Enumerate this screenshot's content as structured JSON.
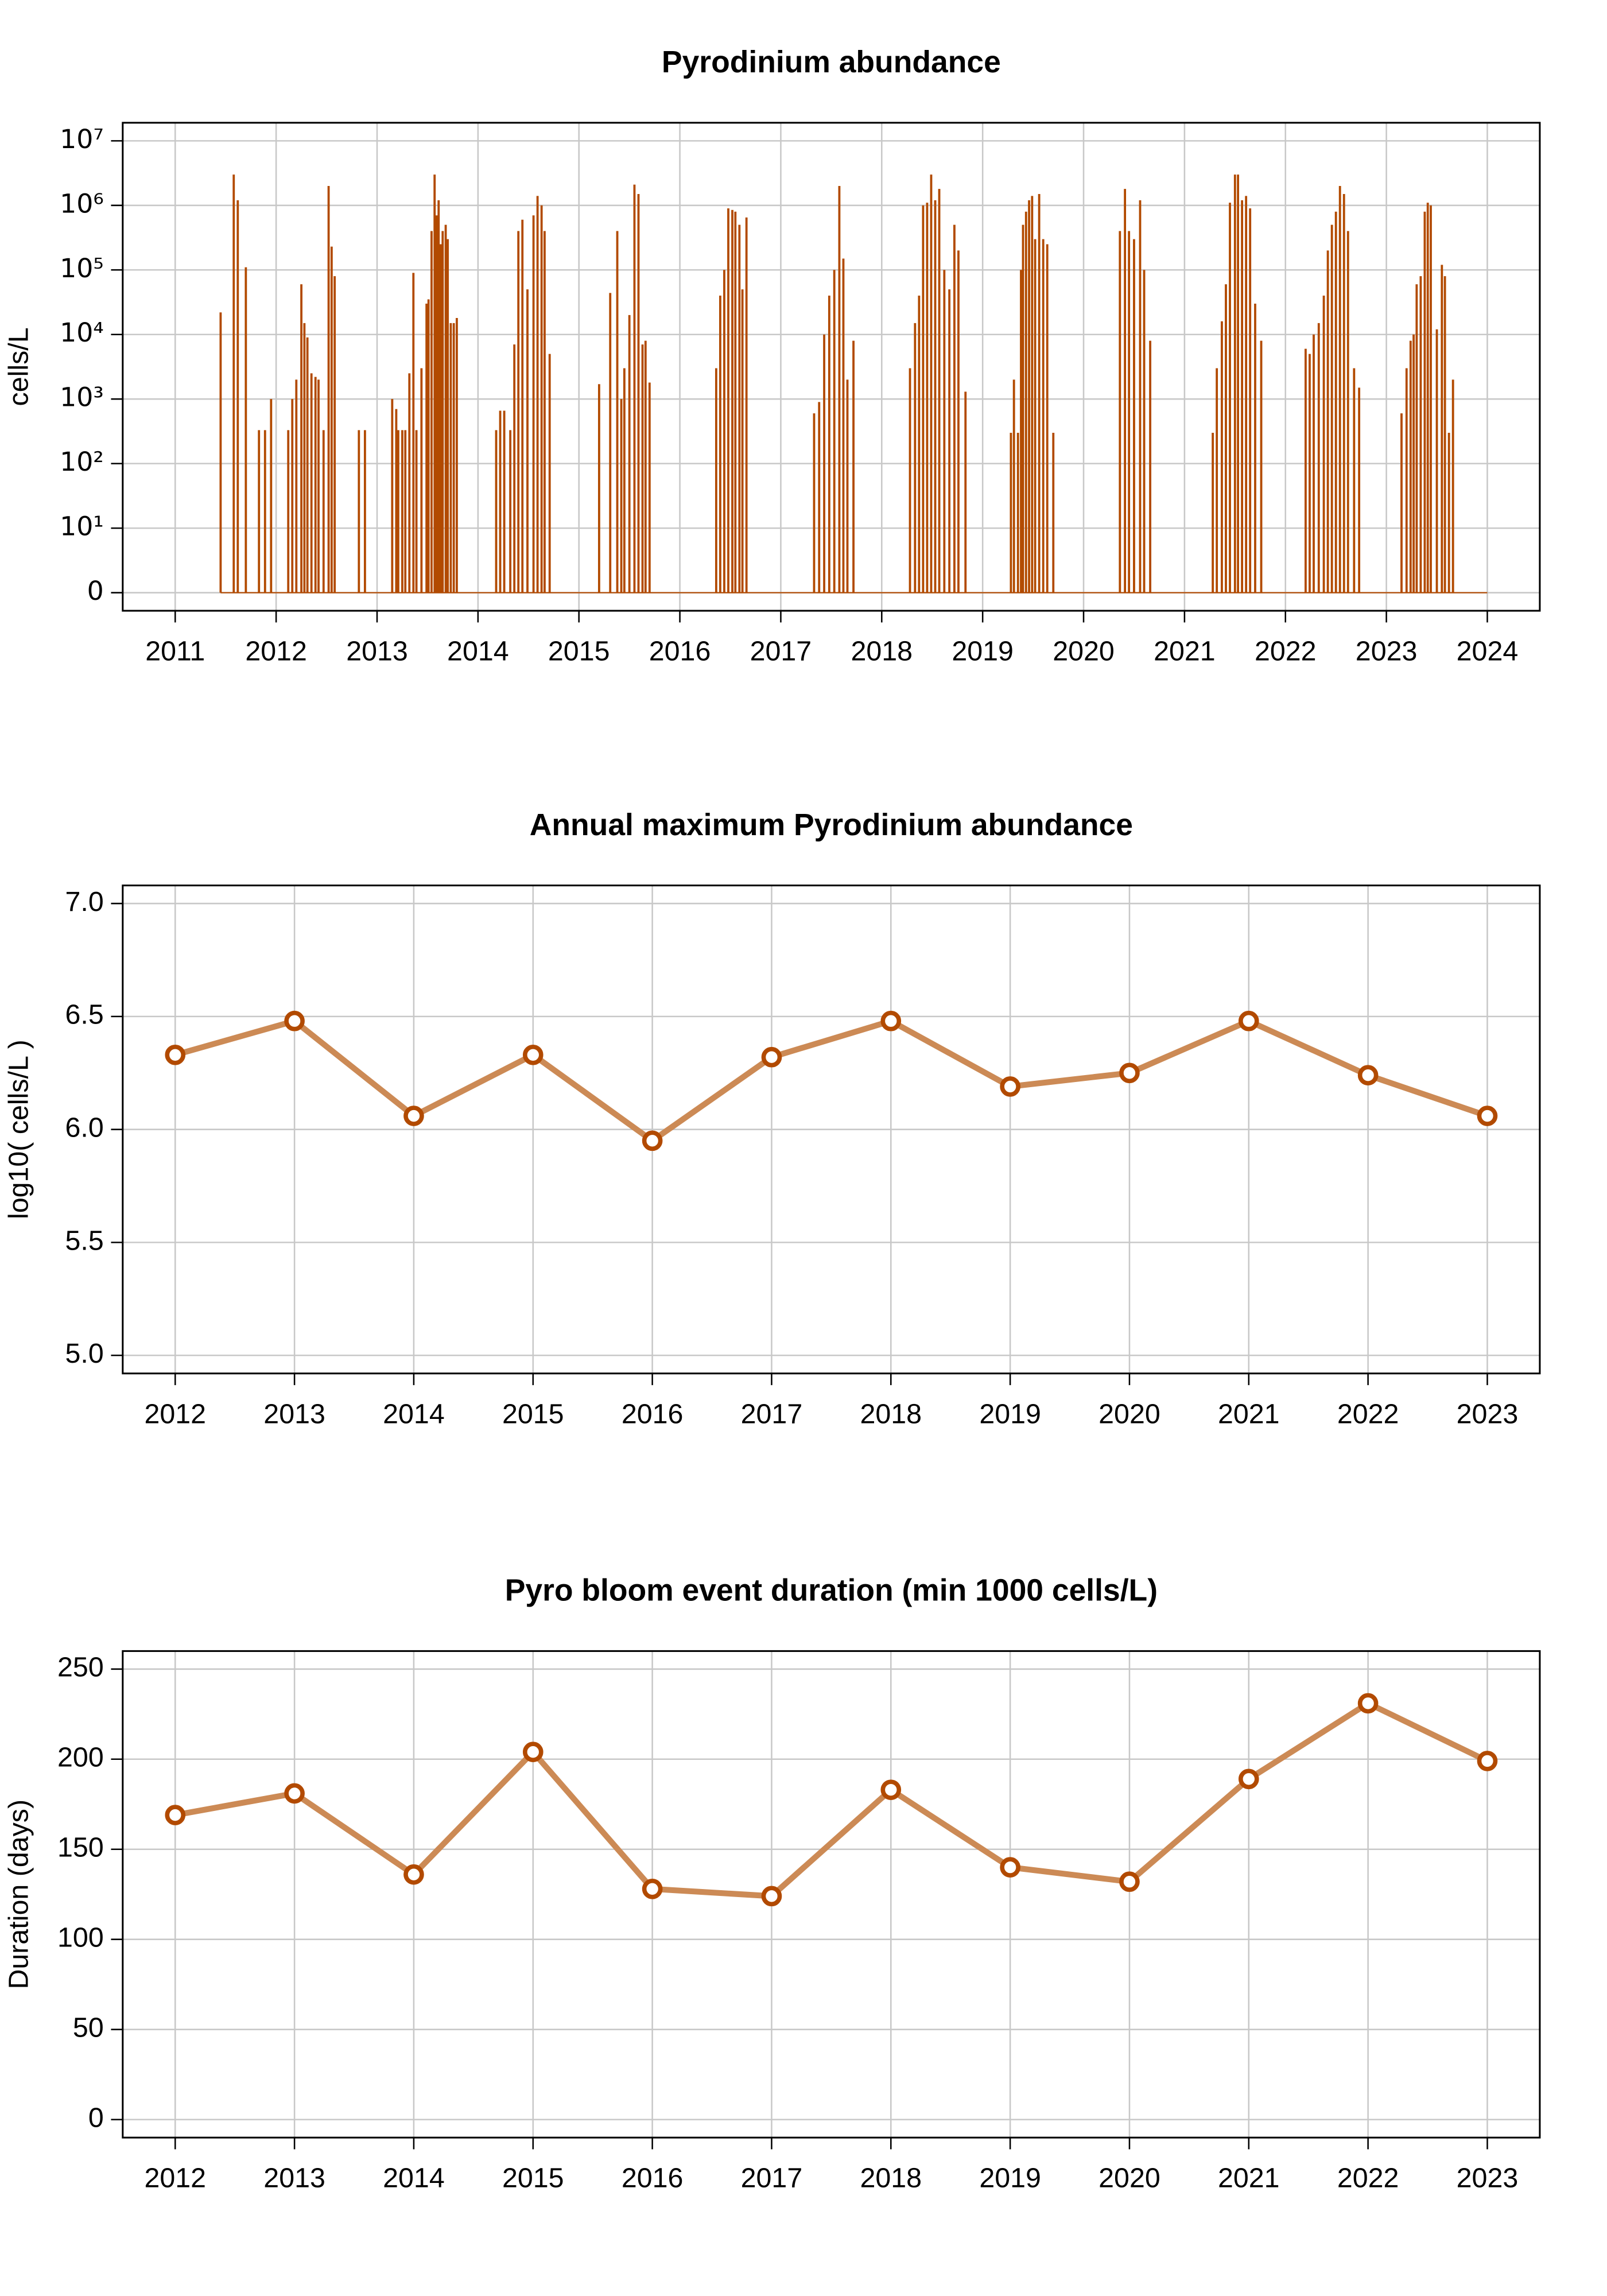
{
  "chart_data": [
    {
      "type": "spike",
      "title": "Pyrodinium abundance",
      "ylabel": "cells/L",
      "yscale": "log",
      "xlim": [
        2011,
        2024
      ],
      "xticks": [
        2011,
        2012,
        2013,
        2014,
        2015,
        2016,
        2017,
        2018,
        2019,
        2020,
        2021,
        2022,
        2023,
        2024
      ],
      "ylim": [
        0,
        10000000
      ],
      "yticks": [
        0,
        {
          "value": 10,
          "label": "10¹"
        },
        {
          "value": 100,
          "label": "10²"
        },
        {
          "value": 1000,
          "label": "10³"
        },
        {
          "value": 10000,
          "label": "10⁴"
        },
        {
          "value": 100000,
          "label": "10⁵"
        },
        {
          "value": 1000000,
          "label": "10⁶"
        },
        {
          "value": 10000000,
          "label": "10⁷"
        }
      ],
      "grid": true,
      "series": [
        {
          "color": "#b24a00",
          "x": [
            2011.45,
            2011.58,
            2011.62,
            2011.7,
            2011.83,
            2011.89,
            2011.95,
            2012.12,
            2012.16,
            2012.2,
            2012.25,
            2012.28,
            2012.31,
            2012.35,
            2012.39,
            2012.42,
            2012.47,
            2012.52,
            2012.55,
            2012.58,
            2012.82,
            2012.88,
            2013.15,
            2013.19,
            2013.21,
            2013.25,
            2013.28,
            2013.32,
            2013.36,
            2013.39,
            2013.44,
            2013.49,
            2013.51,
            2013.54,
            2013.57,
            2013.59,
            2013.61,
            2013.63,
            2013.65,
            2013.68,
            2013.7,
            2013.73,
            2013.76,
            2013.79,
            2014.18,
            2014.22,
            2014.26,
            2014.32,
            2014.36,
            2014.4,
            2014.44,
            2014.49,
            2014.55,
            2014.59,
            2014.63,
            2014.66,
            2014.71,
            2015.2,
            2015.31,
            2015.38,
            2015.42,
            2015.45,
            2015.5,
            2015.55,
            2015.59,
            2015.63,
            2015.66,
            2015.7,
            2016.36,
            2016.4,
            2016.44,
            2016.48,
            2016.52,
            2016.55,
            2016.59,
            2016.62,
            2016.66,
            2017.33,
            2017.38,
            2017.43,
            2017.48,
            2017.53,
            2017.58,
            2017.62,
            2017.66,
            2017.72,
            2018.28,
            2018.33,
            2018.37,
            2018.41,
            2018.45,
            2018.49,
            2018.53,
            2018.57,
            2018.62,
            2018.67,
            2018.72,
            2018.76,
            2018.83,
            2019.28,
            2019.31,
            2019.35,
            2019.38,
            2019.4,
            2019.43,
            2019.46,
            2019.49,
            2019.52,
            2019.56,
            2019.6,
            2019.64,
            2019.7,
            2020.36,
            2020.41,
            2020.45,
            2020.5,
            2020.56,
            2020.6,
            2020.66,
            2021.28,
            2021.32,
            2021.37,
            2021.41,
            2021.45,
            2021.5,
            2021.53,
            2021.57,
            2021.61,
            2021.65,
            2021.7,
            2021.76,
            2022.2,
            2022.24,
            2022.28,
            2022.33,
            2022.38,
            2022.42,
            2022.46,
            2022.5,
            2022.54,
            2022.58,
            2022.62,
            2022.68,
            2022.73,
            2023.15,
            2023.2,
            2023.24,
            2023.27,
            2023.3,
            2023.34,
            2023.38,
            2023.41,
            2023.44,
            2023.5,
            2023.55,
            2023.58,
            2023.62,
            2023.66
          ],
          "values": [
            22000,
            3000000,
            1200000,
            110000,
            330,
            330,
            1000,
            330,
            1000,
            2000,
            60000,
            15000,
            9000,
            2500,
            2200,
            2000,
            330,
            2000000,
            230000,
            80000,
            330,
            330,
            1000,
            700,
            330,
            330,
            330,
            2500,
            90000,
            330,
            3000,
            30000,
            35000,
            400000,
            3000000,
            700000,
            1200000,
            250000,
            400000,
            500000,
            300000,
            15000,
            15000,
            18000,
            330,
            660,
            660,
            330,
            7000,
            400000,
            600000,
            50000,
            700000,
            1400000,
            1000000,
            400000,
            5000,
            1700,
            44000,
            400000,
            1000,
            3000,
            20000,
            2100000,
            1500000,
            7000,
            8000,
            1800,
            3000,
            40000,
            100000,
            900000,
            850000,
            800000,
            500000,
            50000,
            650000,
            600,
            900,
            10000,
            40000,
            100000,
            2000000,
            150000,
            2000,
            8000,
            3000,
            15000,
            40000,
            1000000,
            1100000,
            3000000,
            1200000,
            1800000,
            100000,
            50000,
            500000,
            200000,
            1300,
            300,
            2000,
            300,
            100000,
            500000,
            800000,
            1200000,
            1400000,
            300000,
            1500000,
            300000,
            250000,
            300,
            400000,
            1800000,
            400000,
            300000,
            1200000,
            100000,
            8000,
            300,
            3000,
            16000,
            60000,
            1100000,
            3000000,
            3000000,
            1200000,
            1400000,
            900000,
            30000,
            8000,
            6000,
            5000,
            10000,
            15000,
            40000,
            200000,
            500000,
            800000,
            2000000,
            1500000,
            400000,
            3000,
            1500,
            600,
            3000,
            8000,
            10000,
            60000,
            80000,
            800000,
            1100000,
            1000000,
            12000,
            120000,
            80000,
            300,
            2000
          ]
        }
      ]
    },
    {
      "type": "line",
      "title": "Annual maximum Pyrodinium abundance",
      "ylabel": "log10( cells/L )",
      "xlim": [
        2012,
        2023
      ],
      "xticks": [
        2012,
        2013,
        2014,
        2015,
        2016,
        2017,
        2018,
        2019,
        2020,
        2021,
        2022,
        2023
      ],
      "ylim": [
        5,
        7
      ],
      "yticks": [
        {
          "value": 5,
          "label": "5.0"
        },
        5.5,
        {
          "value": 6,
          "label": "6.0"
        },
        6.5,
        {
          "value": 7,
          "label": "7.0"
        }
      ],
      "grid": true,
      "series": [
        {
          "color": "#cc8a55",
          "marker_color": "#b24a00",
          "x": [
            2012,
            2013,
            2014,
            2015,
            2016,
            2017,
            2018,
            2019,
            2020,
            2021,
            2022,
            2023
          ],
          "values": [
            6.33,
            6.48,
            6.06,
            6.33,
            5.95,
            6.32,
            6.48,
            6.19,
            6.25,
            6.48,
            6.24,
            6.06
          ]
        }
      ]
    },
    {
      "type": "line",
      "title": "Pyro bloom event duration (min 1000 cells/L)",
      "ylabel": "Duration (days)",
      "xlim": [
        2012,
        2023
      ],
      "xticks": [
        2012,
        2013,
        2014,
        2015,
        2016,
        2017,
        2018,
        2019,
        2020,
        2021,
        2022,
        2023
      ],
      "ylim": [
        0,
        250
      ],
      "yticks": [
        0,
        50,
        100,
        150,
        200,
        250
      ],
      "grid": true,
      "series": [
        {
          "color": "#cc8a55",
          "marker_color": "#b24a00",
          "x": [
            2012,
            2013,
            2014,
            2015,
            2016,
            2017,
            2018,
            2019,
            2020,
            2021,
            2022,
            2023
          ],
          "values": [
            169,
            181,
            136,
            204,
            128,
            124,
            183,
            140,
            132,
            189,
            231,
            199
          ]
        }
      ]
    }
  ]
}
